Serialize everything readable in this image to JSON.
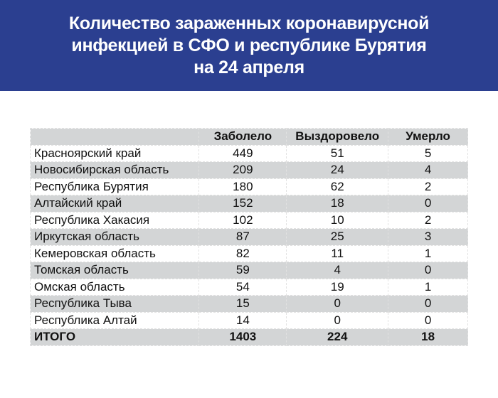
{
  "title_lines": [
    "Количество зараженных коронавирусной",
    "инфекцией в СФО и республике Бурятия",
    "на 24 апреля"
  ],
  "colors": {
    "banner": "#2b3f90",
    "stripe": "#d3d5d6"
  },
  "table": {
    "headers": [
      "",
      "Заболело",
      "Выздоровело",
      "Умерло"
    ],
    "rows": [
      [
        "Красноярский край",
        "449",
        "51",
        "5"
      ],
      [
        "Новосибирская область",
        "209",
        "24",
        "4"
      ],
      [
        "Республика Бурятия",
        "180",
        "62",
        "2"
      ],
      [
        "Алтайский край",
        "152",
        "18",
        "0"
      ],
      [
        "Республика Хакасия",
        "102",
        "10",
        "2"
      ],
      [
        "Иркутская область",
        "87",
        "25",
        "3"
      ],
      [
        "Кемеровская область",
        "82",
        "11",
        "1"
      ],
      [
        "Томская область",
        "59",
        "4",
        "0"
      ],
      [
        "Омская область",
        "54",
        "19",
        "1"
      ],
      [
        "Республика Тыва",
        "15",
        "0",
        "0"
      ],
      [
        "Республика Алтай",
        "14",
        "0",
        "0"
      ]
    ],
    "total": [
      "ИТОГО",
      "1403",
      "224",
      "18"
    ]
  }
}
